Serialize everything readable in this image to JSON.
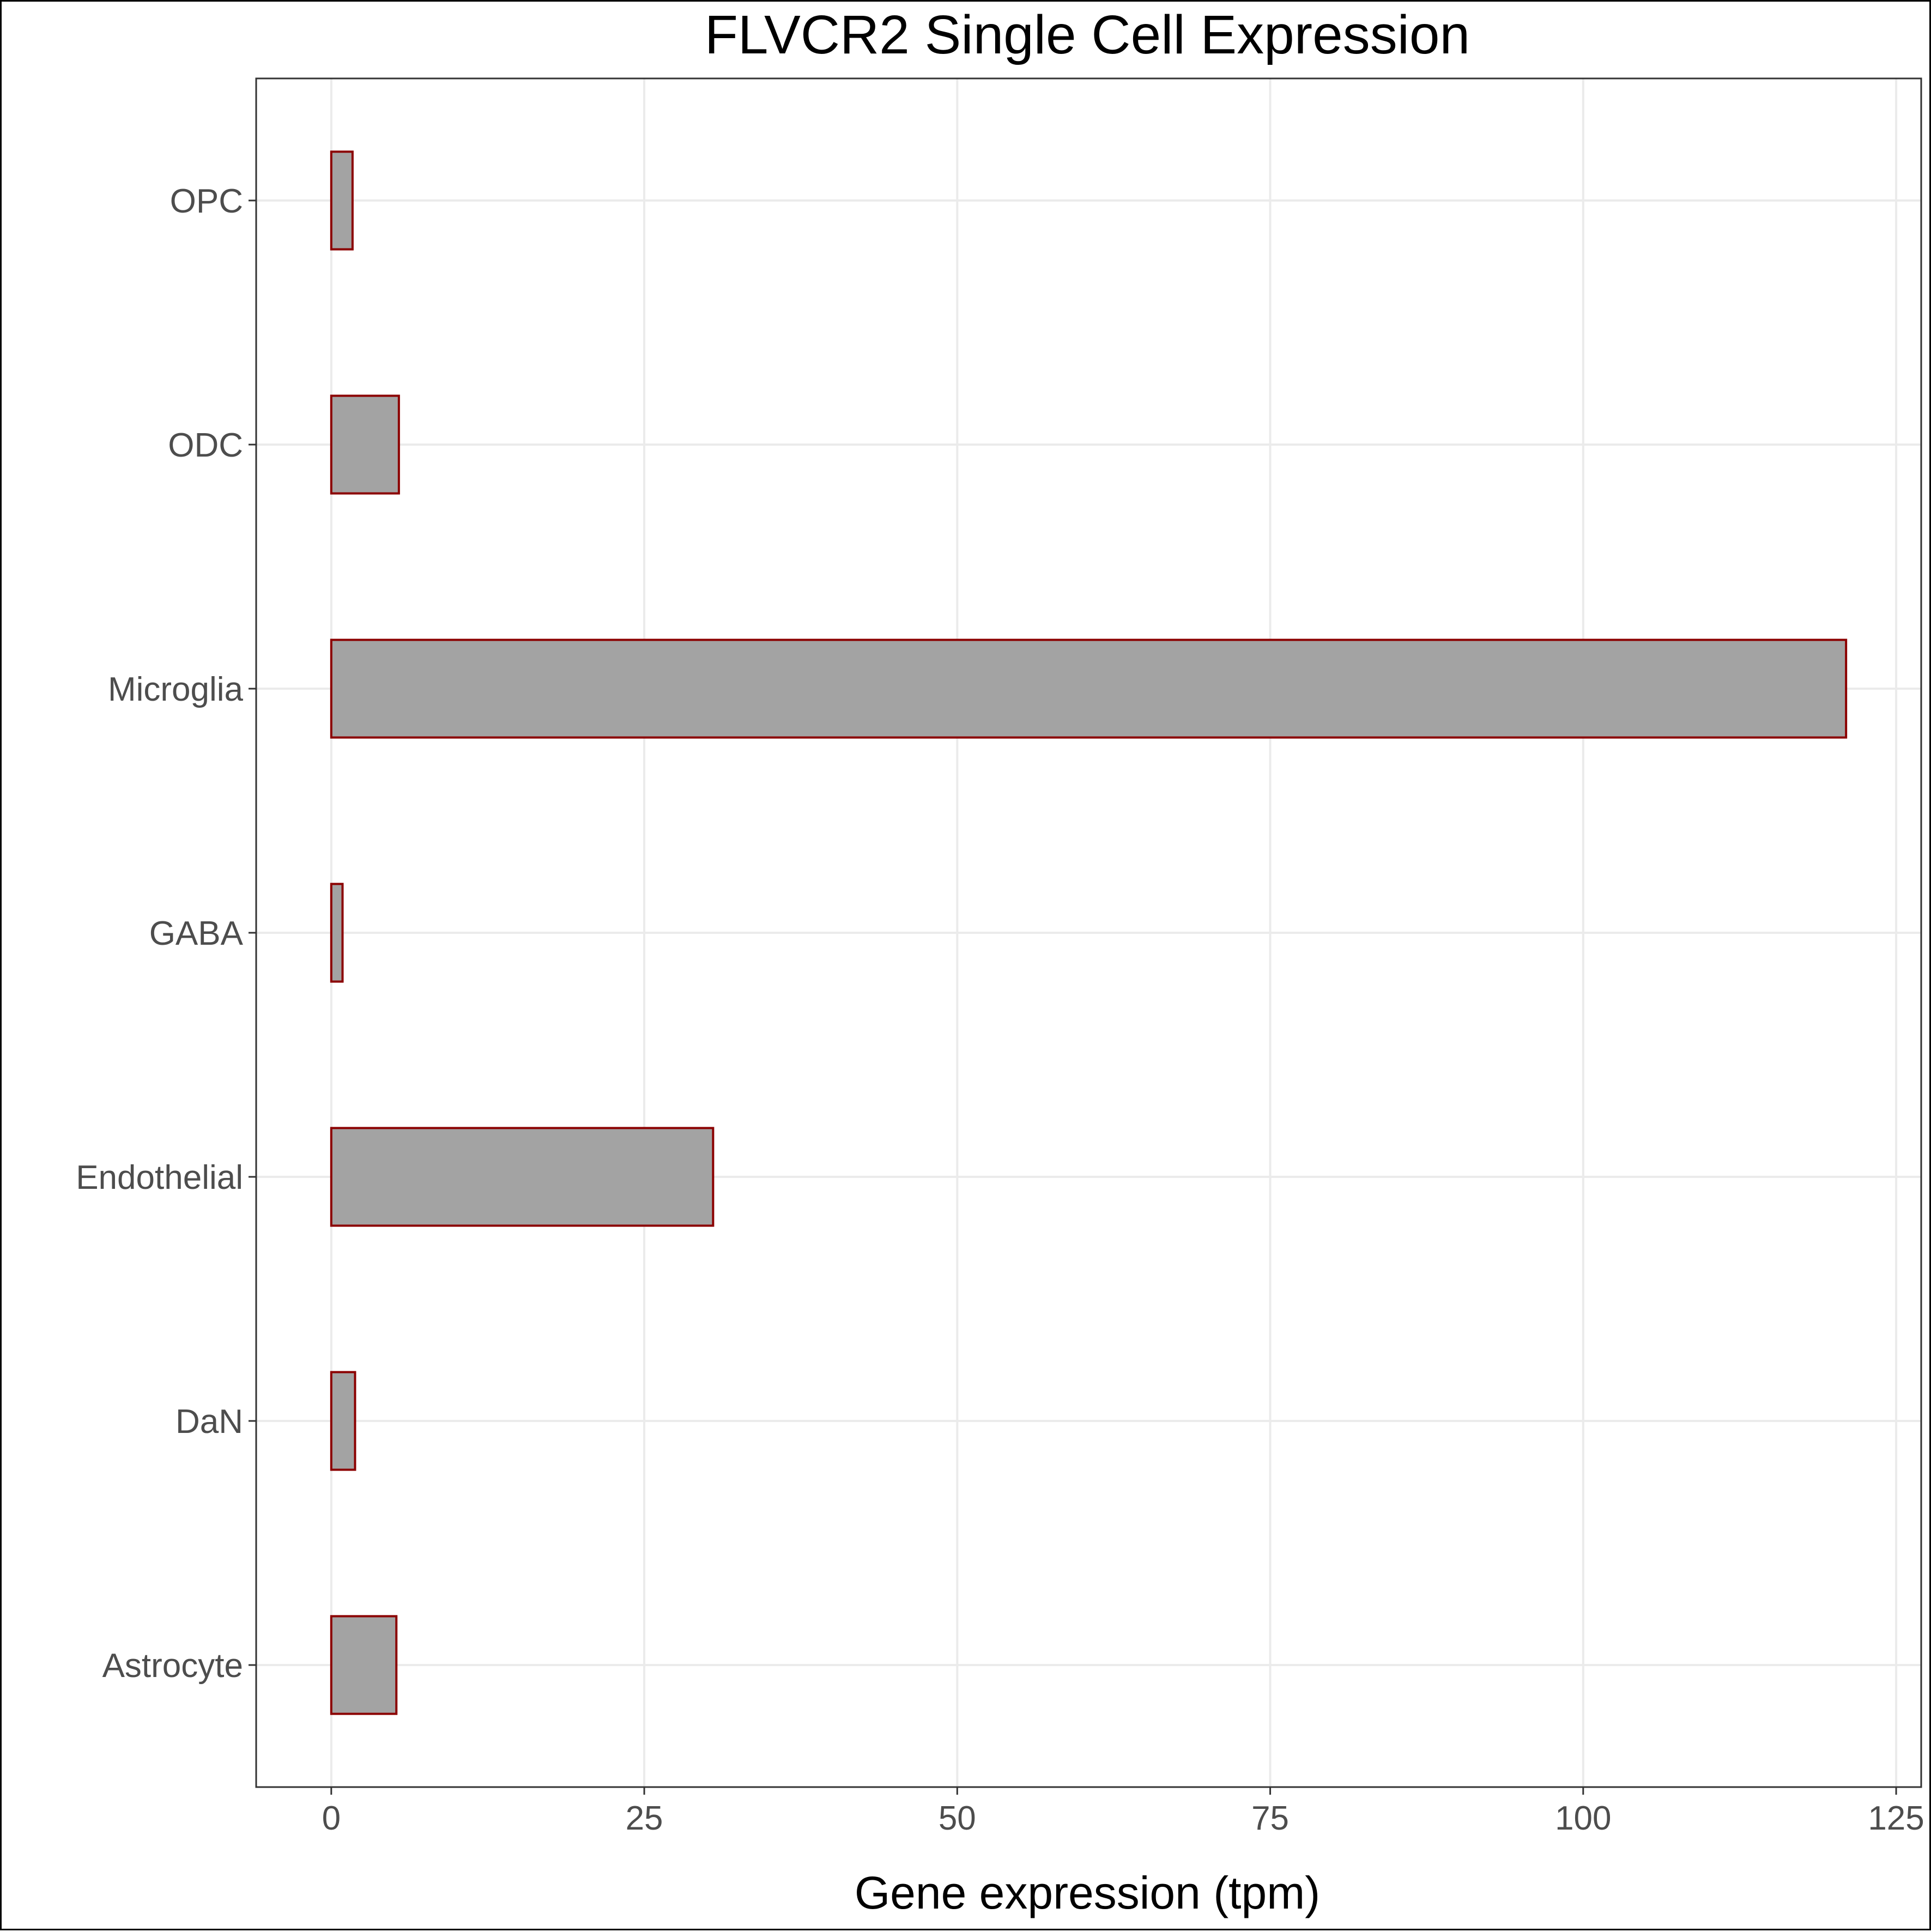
{
  "chart_data": {
    "type": "bar",
    "orientation": "horizontal",
    "title": "FLVCR2 Single Cell Expression",
    "xlabel": "Gene expression (tpm)",
    "ylabel": "",
    "categories": [
      "Astrocyte",
      "DaN",
      "Endothelial",
      "GABA",
      "Microglia",
      "ODC",
      "OPC"
    ],
    "values": [
      5.2,
      1.9,
      30.5,
      0.9,
      121.0,
      5.4,
      1.7
    ],
    "xlim": [
      -6,
      127
    ],
    "xticks": [
      0,
      25,
      50,
      75,
      100,
      125
    ],
    "xtick_labels": [
      "0",
      "25",
      "50",
      "75",
      "100",
      "125"
    ],
    "grid": true,
    "legend": "none",
    "colors": {
      "bar_fill": "#a3a3a3",
      "bar_stroke": "#8b0000"
    }
  }
}
